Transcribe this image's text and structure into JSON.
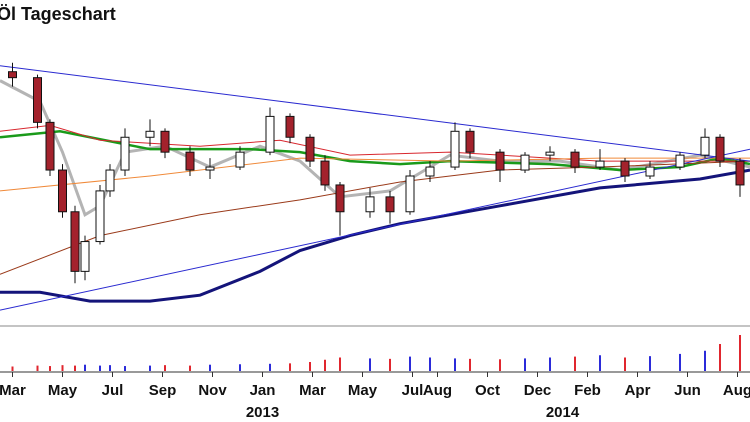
{
  "chart_data": {
    "type": "candlestick",
    "title": "Öl Tageschart",
    "xlim": [
      -0.5,
      29.5
    ],
    "ylim": [
      0,
      100
    ],
    "volume_ylim": [
      0,
      100
    ],
    "xticks": [
      {
        "value": 0,
        "label": "Mar"
      },
      {
        "value": 2,
        "label": "May"
      },
      {
        "value": 4,
        "label": "Jul"
      },
      {
        "value": 6,
        "label": "Sep"
      },
      {
        "value": 8,
        "label": "Nov"
      },
      {
        "value": 10,
        "label": "Jan"
      },
      {
        "value": 12,
        "label": "Mar"
      },
      {
        "value": 14,
        "label": "May"
      },
      {
        "value": 16,
        "label": "Jul"
      },
      {
        "value": 17,
        "label": "Aug"
      },
      {
        "value": 19,
        "label": "Oct"
      },
      {
        "value": 21,
        "label": "Dec"
      },
      {
        "value": 23,
        "label": "Feb"
      },
      {
        "value": 25,
        "label": "Apr"
      },
      {
        "value": 27,
        "label": "Jun"
      },
      {
        "value": 29,
        "label": "Aug"
      }
    ],
    "year_labels": [
      {
        "value": 10,
        "label": "2013"
      },
      {
        "value": 22,
        "label": "2014"
      }
    ],
    "up_color": "#ffffff",
    "down_color": "#a3222c",
    "volume_up_color": "#2b2bd9",
    "volume_down_color": "#e0262e",
    "x": [
      0,
      1,
      1.5,
      2,
      2.5,
      2.9,
      3.5,
      3.9,
      4.5,
      5.5,
      6.1,
      7.1,
      7.9,
      9.1,
      10.3,
      11.1,
      11.9,
      12.5,
      13.1,
      14.3,
      15.1,
      15.9,
      16.7,
      17.7,
      18.3,
      19.5,
      20.5,
      21.5,
      22.5,
      23.5,
      24.5,
      25.5,
      26.7,
      27.7,
      28.3,
      29.1
    ],
    "open": [
      85,
      83,
      68,
      52,
      38,
      18,
      28,
      45,
      52,
      63,
      65,
      58,
      52,
      53,
      58,
      70,
      63,
      55,
      47,
      38,
      43,
      38,
      50,
      53,
      65,
      58,
      52,
      57,
      58,
      53,
      55,
      50,
      53,
      57,
      63,
      55
    ],
    "high": [
      88,
      84,
      69,
      54,
      40,
      30,
      47,
      54,
      66,
      69,
      66,
      60,
      56,
      60,
      73,
      71,
      64,
      57,
      48,
      46,
      45,
      52,
      55,
      68,
      66,
      59,
      58,
      60,
      59,
      59,
      56,
      55,
      58,
      66,
      64,
      56
    ],
    "low": [
      80,
      66,
      50,
      36,
      14,
      15,
      27,
      43,
      50,
      60,
      56,
      50,
      49,
      52,
      57,
      61,
      53,
      45,
      30,
      36,
      34,
      37,
      48,
      52,
      56,
      48,
      51,
      55,
      51,
      52,
      48,
      49,
      52,
      56,
      53,
      43
    ],
    "close": [
      83,
      68,
      52,
      38,
      18,
      28,
      45,
      52,
      63,
      65,
      58,
      52,
      53,
      58,
      70,
      63,
      55,
      47,
      38,
      43,
      38,
      50,
      53,
      65,
      58,
      52,
      57,
      58,
      53,
      55,
      50,
      53,
      57,
      63,
      55,
      47
    ],
    "volume": [
      10,
      12,
      11,
      13,
      12,
      14,
      12,
      13,
      11,
      12,
      13,
      12,
      14,
      15,
      16,
      17,
      20,
      25,
      30,
      28,
      27,
      32,
      30,
      28,
      27,
      26,
      28,
      30,
      32,
      35,
      30,
      33,
      38,
      45,
      60,
      80
    ],
    "lines": [
      {
        "color": "#b4b4b4",
        "width": 3,
        "x": [
          -0.5,
          1.1,
          2.0,
          2.9,
          3.5,
          4.5,
          6.1,
          7.9,
          9.9,
          11.5,
          13.1,
          15.1,
          17.5,
          19.5,
          21.9,
          24.3,
          27.5,
          29.5
        ],
        "values": [
          82,
          75,
          58,
          37,
          40,
          58,
          60,
          53,
          60,
          55,
          43,
          45,
          57,
          55,
          55,
          52,
          57,
          53
        ]
      },
      {
        "color": "#1a9a1a",
        "width": 2.5,
        "x": [
          -0.5,
          1.9,
          5.5,
          9.5,
          11.5,
          13.5,
          15.5,
          17.5,
          21.5,
          24.3,
          26.7,
          28.3,
          29.5
        ],
        "values": [
          63,
          65,
          59,
          59,
          58,
          55,
          54,
          55,
          54,
          52,
          53,
          56,
          54
        ]
      },
      {
        "color": "#d8272e",
        "width": 1,
        "x": [
          -0.5,
          1.5,
          3.5,
          7.5,
          10.7,
          13.5,
          17.5,
          23.5,
          29.5
        ],
        "values": [
          65,
          67,
          62,
          60,
          62,
          57,
          58,
          55,
          55
        ]
      },
      {
        "color": "#f08a3a",
        "width": 1,
        "x": [
          -0.5,
          5.5,
          11.5,
          17.5,
          23.5,
          29.5
        ],
        "values": [
          45,
          50,
          56,
          55,
          56,
          56
        ]
      },
      {
        "color": "#9a3a1a",
        "width": 1,
        "x": [
          -0.5,
          3.5,
          7.5,
          11.5,
          15.5,
          19.5,
          23.5,
          29.5
        ],
        "values": [
          17,
          30,
          37,
          42,
          48,
          52,
          53,
          55
        ]
      },
      {
        "color": "#14147a",
        "width": 3,
        "x": [
          -0.5,
          1.1,
          3.1,
          5.5,
          7.5,
          9.9,
          11.5,
          13.5,
          15.5,
          19.5,
          23.5,
          27.5,
          29.5
        ],
        "values": [
          11,
          11,
          8,
          8,
          10,
          18,
          25,
          30,
          34,
          40,
          46,
          49,
          52
        ]
      },
      {
        "color": "#2a2ad0",
        "width": 1,
        "x": [
          -0.5,
          29.5
        ],
        "values": [
          87,
          55
        ]
      },
      {
        "color": "#2a2ad0",
        "width": 1,
        "x": [
          -0.5,
          29.5
        ],
        "values": [
          5,
          59
        ]
      }
    ]
  }
}
